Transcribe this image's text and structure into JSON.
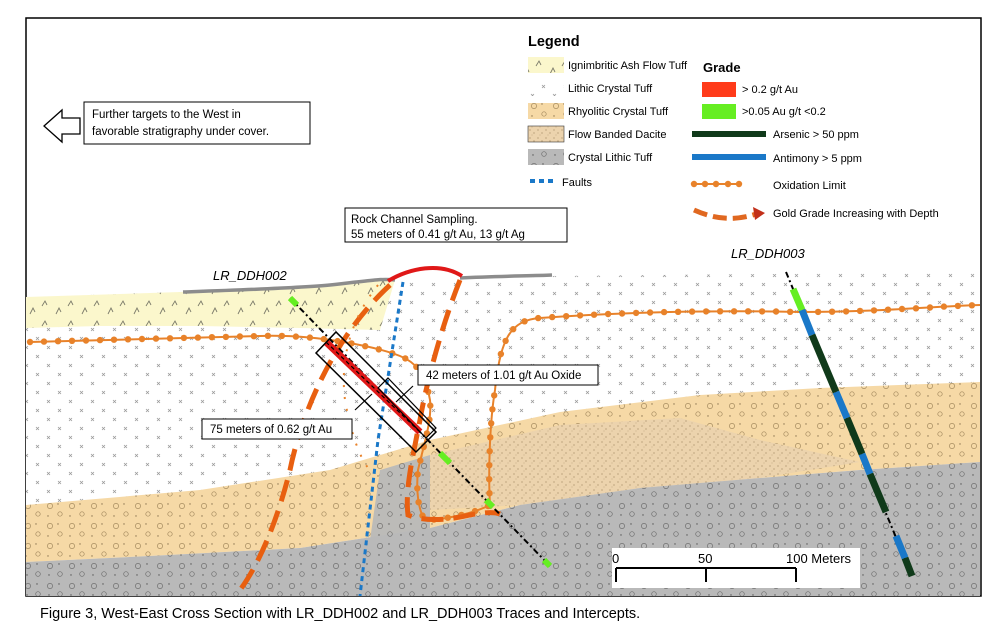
{
  "legend": {
    "title": "Legend",
    "grade_title": "Grade",
    "lithology": [
      {
        "label": "Ignimbritic Ash Flow Tuff",
        "color": "#fbf7cc"
      },
      {
        "label": "Lithic Crystal Tuff",
        "color": "#ffffff"
      },
      {
        "label": "Rhyolitic Crystal Tuff",
        "color": "#f6d9a6"
      },
      {
        "label": "Flow Banded Dacite",
        "color": "#ecd3ad"
      },
      {
        "label": "Crystal Lithic Tuff",
        "color": "#b9b9b9"
      }
    ],
    "faults": "Faults",
    "grade": [
      {
        "label": "> 0.2 g/t Au",
        "color": "#ff3b1a"
      },
      {
        "label": ">0.05 Au g/t <0.2",
        "color": "#66ee22"
      }
    ],
    "lines": [
      {
        "label": "Arsenic > 50 ppm",
        "color": "#103a1a"
      },
      {
        "label": "Antimony > 5 ppm",
        "color": "#1a78c8"
      },
      {
        "label": "Oxidation Limit",
        "color": "#e8822a"
      },
      {
        "label": "Gold Grade Increasing with Depth",
        "color": "#e06820"
      }
    ]
  },
  "callouts": {
    "west_line1": "Further targets to the West in",
    "west_line2": "favorable stratigraphy under cover.",
    "channel_line1": "Rock Channel Sampling.",
    "channel_line2": "55 meters of 0.41 g/t Au,  13 g/t Ag",
    "oxide": "42 meters of 1.01 g/t Au Oxide",
    "intercept": "75 meters of 0.62 g/t Au"
  },
  "holes": {
    "ddh002": "LR_DDH002",
    "ddh003": "LR_DDH003"
  },
  "scale": {
    "t0": "0",
    "t50": "50",
    "t100": "100 Meters"
  },
  "caption": "Figure 3, West-East Cross Section with LR_DDH002 and LR_DDH003 Traces and Intercepts."
}
